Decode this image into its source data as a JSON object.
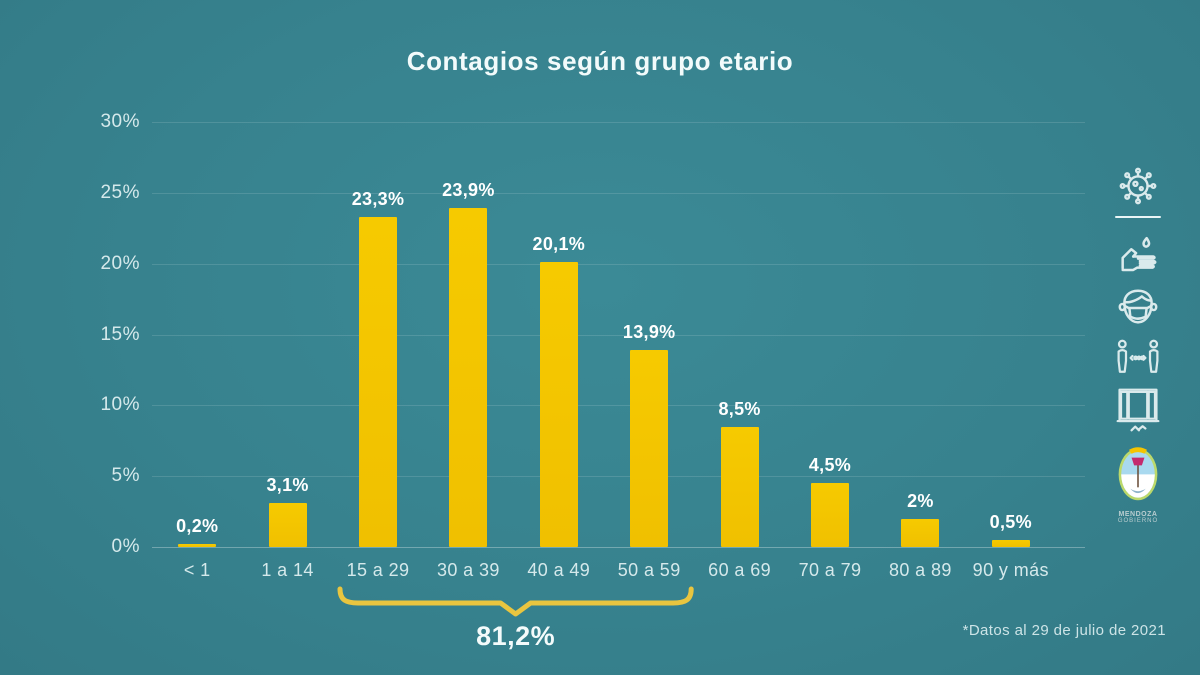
{
  "title": "Contagios según grupo etario",
  "chart_data": {
    "type": "bar",
    "title": "Contagios según grupo etario",
    "categories": [
      "< 1",
      "1 a 14",
      "15 a 29",
      "30 a 39",
      "40 a 49",
      "50 a 59",
      "60 a 69",
      "70 a 79",
      "80 a 89",
      "90 y más"
    ],
    "values": [
      0.2,
      3.1,
      23.3,
      23.9,
      20.1,
      13.9,
      8.5,
      4.5,
      2,
      0.5
    ],
    "value_labels": [
      "0,2%",
      "3,1%",
      "23,3%",
      "23,9%",
      "20,1%",
      "13,9%",
      "8,5%",
      "4,5%",
      "2%",
      "0,5%"
    ],
    "xlabel": "",
    "ylabel": "",
    "ylim": [
      0,
      30
    ],
    "y_ticks": [
      30,
      25,
      20,
      15,
      10,
      5,
      0
    ],
    "y_tick_labels": [
      "30%",
      "25%",
      "20%",
      "15%",
      "10%",
      "5%",
      "0%"
    ],
    "grid": true,
    "legend": null,
    "annotation": {
      "label": "81,2%",
      "from_category": "15 a 29",
      "to_category": "50 a 59",
      "from_index": 2,
      "to_index": 5,
      "sum_of": [
        23.3,
        23.9,
        20.1,
        13.9
      ]
    }
  },
  "footnote": "*Datos al 29 de julio de 2021",
  "colors": {
    "background": "#37828E",
    "bar": "#F2C400",
    "bracket": "#E9C53F",
    "value_text": "#FFFFFF",
    "axis_text": "#D5E9EB"
  },
  "sidebar_icons": [
    {
      "name": "virus-icon"
    },
    {
      "name": "handwash-icon"
    },
    {
      "name": "face-mask-icon"
    },
    {
      "name": "social-distance-icon"
    },
    {
      "name": "open-window-icon"
    }
  ],
  "logo": {
    "line1": "MENDOZA",
    "line2": "GOBIERNO"
  }
}
